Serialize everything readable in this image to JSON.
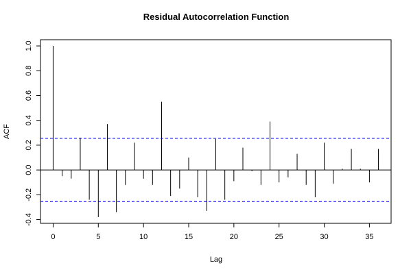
{
  "chart_data": {
    "type": "bar",
    "title": "Residual Autocorrelation Function",
    "xlabel": "Lag",
    "ylabel": "ACF",
    "xlim": [
      -1.4,
      37.4
    ],
    "ylim": [
      -0.43,
      1.05
    ],
    "x_ticks": [
      0,
      5,
      10,
      15,
      20,
      25,
      30,
      35
    ],
    "x_tick_labels": [
      "0",
      "5",
      "10",
      "15",
      "20",
      "25",
      "30",
      "35"
    ],
    "y_ticks": [
      -0.4,
      -0.2,
      0.0,
      0.2,
      0.4,
      0.6,
      0.8,
      1.0
    ],
    "y_tick_labels": [
      "-0.4",
      "-0.2",
      "0.0",
      "0.2",
      "0.4",
      "0.6",
      "0.8",
      "1.0"
    ],
    "grid": false,
    "confidence_band": 0.255,
    "confidence_color": "#0000ff",
    "lags": [
      0,
      1,
      2,
      3,
      4,
      5,
      6,
      7,
      8,
      9,
      10,
      11,
      12,
      13,
      14,
      15,
      16,
      17,
      18,
      19,
      20,
      21,
      22,
      23,
      24,
      25,
      26,
      27,
      28,
      29,
      30,
      31,
      32,
      33,
      34,
      35,
      36
    ],
    "values": [
      1.0,
      -0.05,
      -0.07,
      0.26,
      -0.24,
      -0.38,
      0.37,
      -0.34,
      -0.12,
      0.22,
      -0.07,
      -0.12,
      0.55,
      -0.21,
      -0.15,
      0.1,
      -0.22,
      -0.33,
      0.25,
      -0.24,
      -0.09,
      0.18,
      -0.01,
      -0.12,
      0.39,
      -0.1,
      -0.06,
      0.13,
      -0.12,
      -0.22,
      0.22,
      -0.11,
      0.01,
      0.17,
      0.01,
      -0.1,
      0.17
    ]
  }
}
